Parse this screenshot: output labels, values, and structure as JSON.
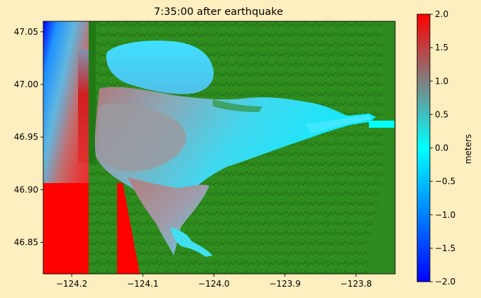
{
  "chart_data": {
    "type": "heatmap",
    "title": "7:35:00 after earthquake",
    "xlabel": "",
    "ylabel": "",
    "xlim": [
      -124.24,
      -123.745
    ],
    "ylim": [
      46.82,
      47.06
    ],
    "x_ticks": [
      -124.2,
      -124.1,
      -124.0,
      -123.9,
      -123.8
    ],
    "x_tick_labels": [
      "−124.2",
      "−124.1",
      "−124.0",
      "−123.9",
      "−123.8"
    ],
    "y_ticks": [
      46.85,
      46.9,
      46.95,
      47.0,
      47.05
    ],
    "y_tick_labels": [
      "46.85",
      "46.90",
      "46.95",
      "47.00",
      "47.05"
    ],
    "grid": false,
    "colorbar": {
      "label": "meters",
      "range": [
        -2.0,
        2.0
      ],
      "ticks": [
        2.0,
        1.5,
        1.0,
        0.5,
        0.0,
        -0.5,
        -1.0,
        -1.5,
        -2.0
      ],
      "tick_labels": [
        "2.0",
        "1.5",
        "1.0",
        "0.5",
        "0.0",
        "−0.5",
        "−1.0",
        "−1.5",
        "−2.0"
      ],
      "colors": [
        "#0000ff",
        "#0080ff",
        "#00ffff",
        "#808080",
        "#ff0000"
      ]
    },
    "colors": {
      "background": "#FFEEBF",
      "land": "#2E8B1E",
      "land_dark": "#1F6E12",
      "offshore_high": "#ff0000",
      "bay_water": "#33CCEE",
      "inlet_water": "#999999"
    }
  }
}
